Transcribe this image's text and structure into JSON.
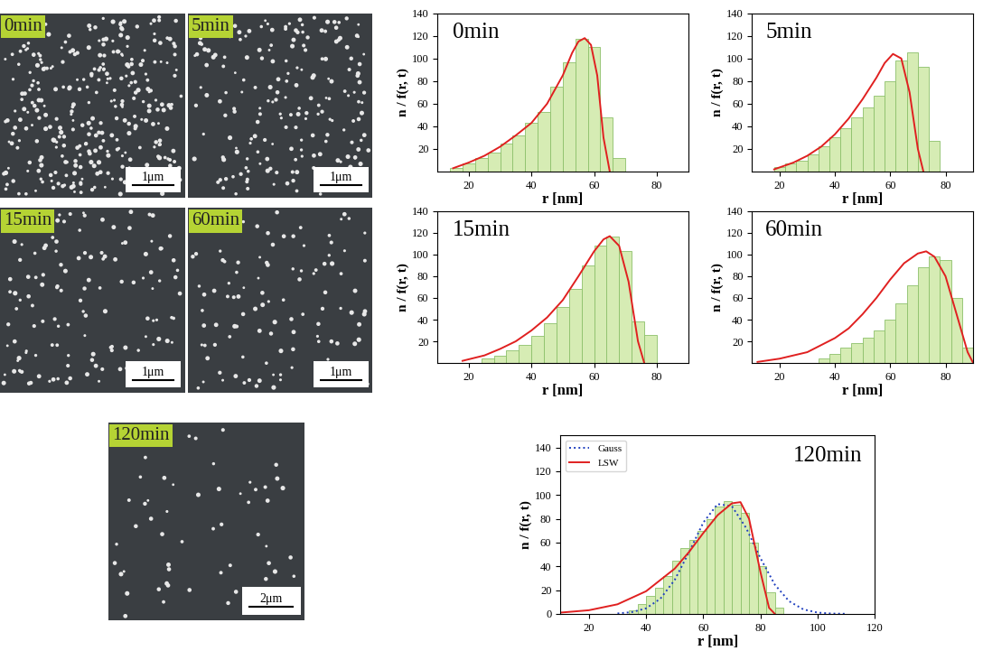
{
  "images": [
    {
      "label": "0min",
      "scale_bar": "1μm"
    },
    {
      "label": "5min",
      "scale_bar": "1μm"
    },
    {
      "label": "15min",
      "scale_bar": "1μm"
    },
    {
      "label": "60min",
      "scale_bar": "1μm"
    },
    {
      "label": "120min",
      "scale_bar": "2μm"
    }
  ],
  "chart_data": [
    {
      "type": "histogram",
      "title": "0min",
      "x_label": "r [nm]",
      "y_label": "n / f(r, t)",
      "color": "#d6ecb4",
      "bins": [
        14,
        18,
        22,
        26,
        30,
        34,
        38,
        42,
        46,
        50,
        54,
        58,
        62,
        66,
        70
      ],
      "counts": [
        3,
        7,
        12,
        17,
        25,
        32,
        43,
        53,
        75,
        97,
        117,
        110,
        48,
        12
      ],
      "xlim": [
        10,
        90
      ],
      "ylim": [
        0,
        140
      ],
      "xticks": [
        20,
        40,
        60,
        80
      ],
      "yticks": [
        20,
        40,
        60,
        80,
        100,
        120,
        140
      ],
      "series": [
        {
          "type": "line",
          "color": "#e02020",
          "line_style": "solid",
          "x": [
            15,
            20,
            25,
            30,
            35,
            40,
            45,
            50,
            53,
            55,
            57,
            59,
            61,
            63,
            65
          ],
          "values": [
            3,
            8,
            14,
            22,
            32,
            43,
            60,
            85,
            105,
            115,
            118,
            112,
            85,
            30,
            0
          ]
        }
      ]
    },
    {
      "type": "histogram",
      "title": "5min",
      "x_label": "r [nm]",
      "y_label": "n / f(r, t)",
      "color": "#d6ecb4",
      "bins": [
        18,
        22,
        26,
        30,
        34,
        38,
        42,
        46,
        50,
        54,
        58,
        62,
        66,
        70,
        74,
        78
      ],
      "counts": [
        4,
        7,
        10,
        15,
        22,
        30,
        38,
        48,
        57,
        67,
        80,
        98,
        105,
        93,
        27
      ],
      "xlim": [
        10,
        90
      ],
      "ylim": [
        0,
        140
      ],
      "xticks": [
        20,
        40,
        60,
        80
      ],
      "yticks": [
        20,
        40,
        60,
        80,
        100,
        120,
        140
      ],
      "series": [
        {
          "type": "line",
          "color": "#e02020",
          "line_style": "solid",
          "x": [
            18,
            25,
            30,
            35,
            40,
            45,
            50,
            55,
            58,
            61,
            64,
            67,
            70,
            72
          ],
          "values": [
            2,
            8,
            14,
            22,
            33,
            47,
            64,
            83,
            96,
            104,
            100,
            70,
            20,
            0
          ]
        }
      ]
    },
    {
      "type": "histogram",
      "title": "15min",
      "x_label": "r [nm]",
      "y_label": "n / f(r, t)",
      "color": "#d6ecb4",
      "bins": [
        24,
        28,
        32,
        36,
        40,
        44,
        48,
        52,
        56,
        60,
        64,
        68,
        72,
        76,
        80
      ],
      "counts": [
        4,
        7,
        12,
        17,
        25,
        37,
        52,
        68,
        90,
        108,
        117,
        103,
        38,
        26
      ],
      "xlim": [
        10,
        90
      ],
      "ylim": [
        0,
        140
      ],
      "xticks": [
        20,
        40,
        60,
        80
      ],
      "yticks": [
        20,
        40,
        60,
        80,
        100,
        120,
        140
      ],
      "series": [
        {
          "type": "line",
          "color": "#e02020",
          "line_style": "solid",
          "x": [
            18,
            25,
            30,
            35,
            40,
            45,
            50,
            55,
            60,
            63,
            65,
            68,
            71,
            74,
            76
          ],
          "values": [
            2,
            7,
            13,
            20,
            30,
            42,
            58,
            80,
            103,
            114,
            117,
            108,
            75,
            20,
            0
          ]
        }
      ]
    },
    {
      "type": "histogram",
      "title": "60min",
      "x_label": "r [nm]",
      "y_label": "n / f(r, t)",
      "color": "#d6ecb4",
      "bins": [
        34,
        38,
        42,
        46,
        50,
        54,
        58,
        62,
        66,
        70,
        74,
        78,
        82,
        86,
        90
      ],
      "counts": [
        4,
        8,
        14,
        18,
        23,
        30,
        40,
        55,
        72,
        88,
        98,
        95,
        60,
        14
      ],
      "xlim": [
        10,
        90
      ],
      "ylim": [
        0,
        140
      ],
      "xticks": [
        20,
        40,
        60,
        80
      ],
      "yticks": [
        20,
        40,
        60,
        80,
        100,
        120,
        140
      ],
      "series": [
        {
          "type": "line",
          "color": "#e02020",
          "line_style": "solid",
          "x": [
            12,
            20,
            30,
            40,
            45,
            50,
            55,
            60,
            65,
            70,
            73,
            76,
            80,
            84,
            88,
            90
          ],
          "values": [
            1,
            4,
            10,
            23,
            32,
            45,
            60,
            77,
            92,
            101,
            103,
            98,
            80,
            45,
            10,
            0
          ]
        }
      ]
    },
    {
      "type": "histogram",
      "title": "120min",
      "x_label": "r [nm]",
      "y_label": "n / f(r, t)",
      "color": "#d6ecb4",
      "legend": "upper left",
      "bins": [
        34,
        37,
        40,
        43,
        46,
        49,
        52,
        55,
        58,
        61,
        64,
        67,
        70,
        73,
        76,
        79,
        82,
        85,
        88
      ],
      "counts": [
        3,
        8,
        15,
        22,
        32,
        45,
        55,
        62,
        70,
        80,
        90,
        95,
        92,
        85,
        60,
        40,
        18,
        5
      ],
      "xlim": [
        10,
        120
      ],
      "ylim": [
        0,
        150
      ],
      "xticks": [
        20,
        40,
        60,
        80,
        100,
        120
      ],
      "yticks": [
        0,
        20,
        40,
        60,
        80,
        100,
        120,
        140
      ],
      "series": [
        {
          "name": "Gauss",
          "type": "line",
          "color": "#1f3fbf",
          "line_style": "dotted",
          "x": [
            30,
            35,
            40,
            45,
            50,
            55,
            60,
            65,
            70,
            75,
            80,
            85,
            90,
            95,
            100,
            105,
            110
          ],
          "values": [
            0.3,
            1.4,
            4.6,
            12.7,
            28.5,
            51.8,
            76.8,
            92.4,
            90.6,
            72.2,
            46.8,
            24.6,
            10.6,
            3.7,
            1.0,
            0.2,
            0.0
          ]
        },
        {
          "name": "LSW",
          "type": "line",
          "color": "#e02020",
          "line_style": "solid",
          "x": [
            10,
            20,
            30,
            40,
            50,
            55,
            60,
            65,
            70,
            73,
            76,
            80,
            83,
            85
          ],
          "values": [
            1,
            3,
            8,
            19,
            38,
            52,
            68,
            83,
            93,
            94,
            80,
            35,
            5,
            0
          ]
        }
      ]
    }
  ]
}
